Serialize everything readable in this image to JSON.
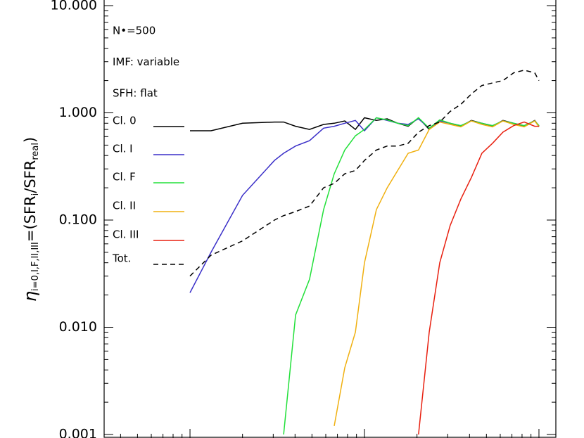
{
  "chart_data": {
    "type": "line",
    "ylabel": [
      "η",
      "i=0,I,F,II,III",
      "=(SFR",
      "i",
      "/SFR",
      "real",
      ")"
    ],
    "annotations": [
      "N•=500",
      "IMF: variable",
      "SFH: flat"
    ],
    "xlog": true,
    "ylog": true,
    "xlim": [
      32200,
      12500000
    ],
    "ylim": [
      0.001,
      10
    ],
    "yticks": [
      {
        "value": 0.001,
        "label": "0.001"
      },
      {
        "value": 0.01,
        "label": "0.010"
      },
      {
        "value": 0.1,
        "label": "0.100"
      },
      {
        "value": 1,
        "label": "1.000"
      },
      {
        "value": 10,
        "label": "10.000"
      }
    ],
    "x": [
      100000,
      132000,
      200000,
      305000,
      344000,
      403000,
      484000,
      583000,
      671000,
      771000,
      887000,
      1000000,
      1170000,
      1350000,
      1550000,
      1780000,
      2040000,
      2350000,
      2700000,
      3100000,
      3570000,
      4100000,
      4710000,
      5420000,
      6220000,
      7160000,
      8230000,
      9460000,
      10000000
    ],
    "series": [
      {
        "name": "Cl. 0",
        "color": "#000000",
        "dash": false,
        "values": [
          0.68,
          0.68,
          0.8,
          0.82,
          0.82,
          0.75,
          0.7,
          0.78,
          0.8,
          0.84,
          0.7,
          0.9,
          0.85,
          0.88,
          0.8,
          0.75,
          0.9,
          0.7,
          0.85,
          0.8,
          0.75,
          0.85,
          0.8,
          0.75,
          0.85,
          0.8,
          0.75,
          0.85,
          0.75
        ]
      },
      {
        "name": "Cl. I",
        "color": "#3a2fc8",
        "dash": false,
        "values": [
          0.021,
          0.05,
          0.17,
          0.36,
          0.42,
          0.49,
          0.55,
          0.72,
          0.75,
          0.8,
          0.85,
          0.68,
          0.9,
          0.85,
          0.8,
          0.78,
          0.88,
          0.72,
          0.84,
          0.8,
          0.76,
          0.84,
          0.8,
          0.76,
          0.84,
          0.8,
          0.76,
          0.84,
          0.76
        ]
      },
      {
        "name": "Cl. F",
        "color": "#22e03a",
        "dash": false,
        "values": [
          null,
          null,
          null,
          null,
          0.001,
          0.013,
          0.028,
          0.125,
          0.27,
          0.45,
          0.61,
          0.7,
          0.9,
          0.86,
          0.8,
          0.76,
          0.9,
          0.72,
          0.86,
          0.8,
          0.76,
          0.84,
          0.8,
          0.76,
          0.84,
          0.8,
          0.76,
          0.84,
          0.76
        ]
      },
      {
        "name": "Cl. II",
        "color": "#f0b010",
        "dash": false,
        "values": [
          null,
          null,
          null,
          null,
          null,
          null,
          null,
          null,
          0.0012,
          0.0042,
          0.009,
          0.04,
          0.125,
          0.2,
          0.29,
          0.42,
          0.45,
          0.7,
          0.82,
          0.78,
          0.74,
          0.84,
          0.78,
          0.74,
          0.84,
          0.78,
          0.74,
          0.84,
          0.74
        ]
      },
      {
        "name": "Cl. III",
        "color": "#e82010",
        "dash": false,
        "values": [
          null,
          null,
          null,
          null,
          null,
          null,
          null,
          null,
          null,
          null,
          null,
          null,
          null,
          null,
          null,
          null,
          0.001,
          0.009,
          0.04,
          0.089,
          0.157,
          0.25,
          0.42,
          0.52,
          0.66,
          0.76,
          0.82,
          0.75,
          0.75
        ]
      },
      {
        "name": "Tot.",
        "color": "#000000",
        "dash": true,
        "values": [
          0.03,
          0.047,
          0.064,
          0.1,
          0.11,
          0.12,
          0.135,
          0.2,
          0.22,
          0.27,
          0.29,
          0.36,
          0.45,
          0.49,
          0.49,
          0.52,
          0.66,
          0.76,
          0.82,
          1.03,
          1.2,
          1.5,
          1.8,
          1.9,
          2.0,
          2.36,
          2.5,
          2.36,
          2.0
        ]
      }
    ]
  }
}
